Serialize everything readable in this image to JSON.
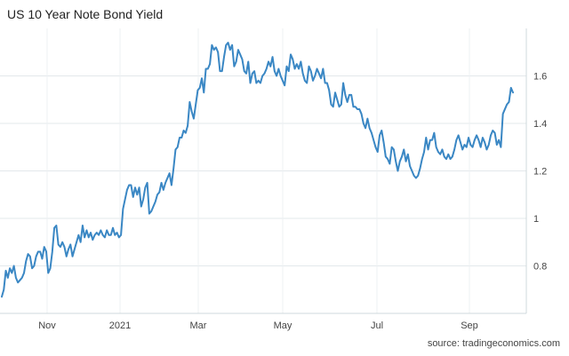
{
  "chart_data": {
    "type": "line",
    "title": "US 10 Year Note Bond Yield",
    "source": "source: tradingeconomics.com",
    "xlabel": "",
    "ylabel": "",
    "x_tick_labels": [
      "Nov",
      "2021",
      "Mar",
      "May",
      "Jul",
      "Sep"
    ],
    "y_ticks": [
      0.8,
      1,
      1.2,
      1.4,
      1.6
    ],
    "y_tick_labels": [
      "0.8",
      "1",
      "1.2",
      "1.4",
      "1.6"
    ],
    "ylim": [
      0.6,
      1.8
    ],
    "grid": true,
    "line_color": "#3a87c4",
    "series": [
      {
        "values": [
          0.67,
          0.7,
          0.78,
          0.75,
          0.79,
          0.77,
          0.8,
          0.75,
          0.73,
          0.74,
          0.75,
          0.77,
          0.82,
          0.85,
          0.84,
          0.79,
          0.8,
          0.84,
          0.86,
          0.86,
          0.83,
          0.88,
          0.86,
          0.77,
          0.79,
          0.86,
          0.96,
          0.97,
          0.89,
          0.88,
          0.9,
          0.88,
          0.84,
          0.87,
          0.89,
          0.84,
          0.87,
          0.9,
          0.93,
          0.9,
          0.97,
          0.92,
          0.95,
          0.92,
          0.94,
          0.91,
          0.93,
          0.94,
          0.93,
          0.95,
          0.93,
          0.92,
          0.95,
          0.93,
          0.93,
          0.96,
          0.93,
          0.94,
          0.92,
          0.93,
          1.04,
          1.08,
          1.12,
          1.14,
          1.14,
          1.09,
          1.13,
          1.1,
          1.13,
          1.05,
          1.08,
          1.13,
          1.15,
          1.02,
          1.03,
          1.05,
          1.07,
          1.1,
          1.11,
          1.15,
          1.12,
          1.15,
          1.17,
          1.19,
          1.14,
          1.21,
          1.29,
          1.3,
          1.34,
          1.34,
          1.37,
          1.36,
          1.39,
          1.49,
          1.45,
          1.42,
          1.48,
          1.54,
          1.55,
          1.59,
          1.53,
          1.63,
          1.63,
          1.65,
          1.73,
          1.71,
          1.72,
          1.7,
          1.62,
          1.62,
          1.68,
          1.73,
          1.74,
          1.71,
          1.73,
          1.64,
          1.66,
          1.71,
          1.69,
          1.67,
          1.62,
          1.61,
          1.66,
          1.57,
          1.61,
          1.62,
          1.57,
          1.58,
          1.57,
          1.6,
          1.61,
          1.63,
          1.66,
          1.64,
          1.68,
          1.62,
          1.6,
          1.63,
          1.6,
          1.58,
          1.56,
          1.64,
          1.62,
          1.69,
          1.67,
          1.63,
          1.65,
          1.63,
          1.66,
          1.61,
          1.58,
          1.57,
          1.64,
          1.62,
          1.58,
          1.6,
          1.63,
          1.61,
          1.59,
          1.63,
          1.57,
          1.57,
          1.54,
          1.48,
          1.47,
          1.53,
          1.5,
          1.47,
          1.48,
          1.57,
          1.52,
          1.49,
          1.52,
          1.52,
          1.47,
          1.47,
          1.46,
          1.46,
          1.44,
          1.4,
          1.38,
          1.42,
          1.38,
          1.36,
          1.33,
          1.3,
          1.28,
          1.35,
          1.37,
          1.32,
          1.26,
          1.25,
          1.23,
          1.3,
          1.29,
          1.24,
          1.2,
          1.24,
          1.26,
          1.29,
          1.24,
          1.27,
          1.22,
          1.2,
          1.18,
          1.17,
          1.18,
          1.21,
          1.25,
          1.28,
          1.34,
          1.29,
          1.33,
          1.33,
          1.36,
          1.3,
          1.28,
          1.27,
          1.29,
          1.26,
          1.25,
          1.27,
          1.25,
          1.26,
          1.29,
          1.33,
          1.35,
          1.32,
          1.29,
          1.31,
          1.3,
          1.34,
          1.31,
          1.3,
          1.33,
          1.35,
          1.33,
          1.3,
          1.34,
          1.32,
          1.29,
          1.31,
          1.35,
          1.37,
          1.36,
          1.31,
          1.33,
          1.3,
          1.44,
          1.46,
          1.48,
          1.49,
          1.55,
          1.53
        ]
      }
    ]
  }
}
